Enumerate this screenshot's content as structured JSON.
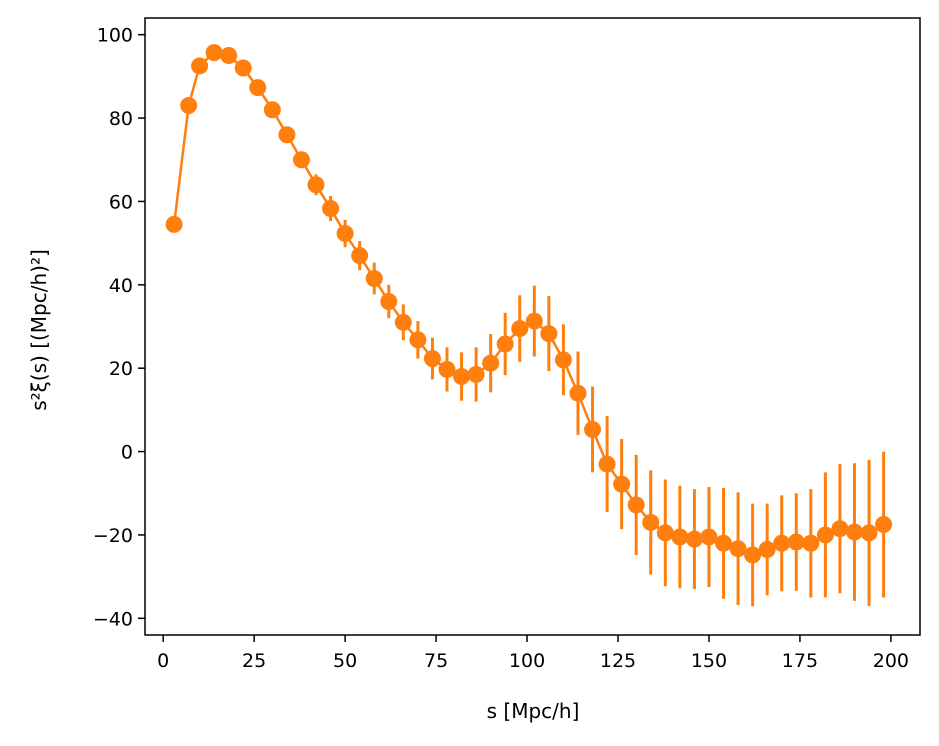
{
  "chart_data": {
    "type": "scatter",
    "xlabel": "s [Mpc/h]",
    "ylabel": "s²ξ(s) [(Mpc/h)²]",
    "xlim": [
      -5,
      208
    ],
    "ylim": [
      -44,
      104
    ],
    "xticks": [
      0,
      25,
      50,
      75,
      100,
      125,
      150,
      175,
      200
    ],
    "yticks": [
      -40,
      -20,
      0,
      20,
      40,
      60,
      80,
      100
    ],
    "grid": false,
    "series": [
      {
        "color": "#ff7f0e",
        "marker": "circle",
        "line": true,
        "x": [
          3,
          7,
          10,
          14,
          18,
          22,
          26,
          30,
          34,
          38,
          42,
          46,
          50,
          54,
          58,
          62,
          66,
          70,
          74,
          78,
          82,
          86,
          90,
          94,
          98,
          102,
          106,
          110,
          114,
          118,
          122,
          126,
          130,
          134,
          138,
          142,
          146,
          150,
          154,
          158,
          162,
          166,
          170,
          174,
          178,
          182,
          186,
          190,
          194,
          198
        ],
        "y": [
          54.5,
          83,
          92.5,
          95.7,
          95,
          92,
          87.3,
          82,
          76,
          70,
          64,
          58.3,
          52.3,
          47,
          41.5,
          36,
          31,
          26.8,
          22.3,
          19.7,
          18,
          18.5,
          21.2,
          25.8,
          29.5,
          31.3,
          28.3,
          22,
          14,
          5.3,
          -3,
          -7.8,
          -12.8,
          -17,
          -19.5,
          -20.5,
          -21,
          -20.5,
          -22,
          -23.3,
          -24.8,
          -23.5,
          -22,
          -21.7,
          -22,
          -20,
          -18.5,
          -19.3,
          -19.5,
          -17.5
        ],
        "yerr": [
          0.5,
          0.5,
          0.5,
          0.5,
          0.5,
          0.5,
          0.5,
          0.8,
          1.5,
          2,
          2.5,
          3,
          3.3,
          3.5,
          3.8,
          4,
          4.3,
          4.5,
          5,
          5.3,
          5.8,
          6.5,
          7,
          7.5,
          8,
          8.5,
          9,
          8.5,
          10,
          10.3,
          11.5,
          10.8,
          12,
          12.5,
          12.8,
          12.3,
          12,
          12,
          13.3,
          13.5,
          12.3,
          11,
          11.5,
          11.7,
          13,
          15,
          15.5,
          16.5,
          17.5,
          17.5
        ]
      }
    ]
  }
}
